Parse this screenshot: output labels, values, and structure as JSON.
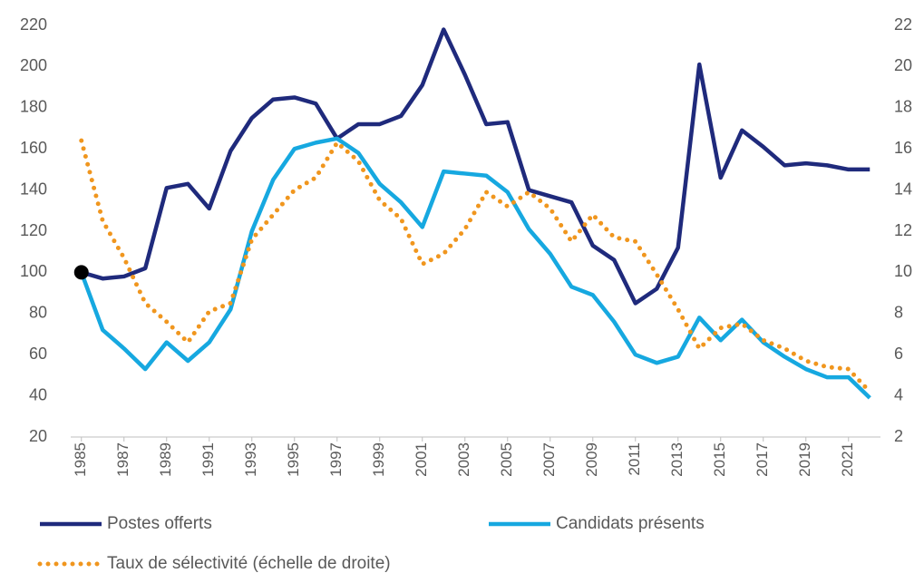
{
  "chart_data": {
    "type": "line",
    "x": [
      1985,
      1986,
      1987,
      1988,
      1989,
      1990,
      1991,
      1992,
      1993,
      1994,
      1995,
      1996,
      1997,
      1998,
      1999,
      2000,
      2001,
      2002,
      2003,
      2004,
      2005,
      2006,
      2007,
      2008,
      2009,
      2010,
      2011,
      2012,
      2013,
      2014,
      2015,
      2016,
      2017,
      2018,
      2019,
      2020,
      2021,
      2022
    ],
    "xlim": [
      1984.5,
      2022.5
    ],
    "xticks": [
      1985,
      1987,
      1989,
      1991,
      1993,
      1995,
      1997,
      1999,
      2001,
      2003,
      2005,
      2007,
      2009,
      2011,
      2013,
      2015,
      2017,
      2019,
      2021
    ],
    "ylim": [
      20,
      220
    ],
    "yticks": [
      20,
      40,
      60,
      80,
      100,
      120,
      140,
      160,
      180,
      200,
      220
    ],
    "y2lim": [
      2,
      22
    ],
    "y2ticks": [
      2,
      4,
      6,
      8,
      10,
      12,
      14,
      16,
      18,
      20,
      22
    ],
    "grid": false,
    "legend": "bottom",
    "series": [
      {
        "name": "Postes offerts",
        "color": "#1f2a7c",
        "style": "solid",
        "values": [
          100,
          97,
          98,
          102,
          141,
          143,
          131,
          159,
          175,
          184,
          185,
          182,
          165,
          172,
          172,
          176,
          191,
          218,
          196,
          172,
          173,
          140,
          137,
          134,
          113,
          106,
          85,
          92,
          112,
          201,
          146,
          169,
          161,
          152,
          153,
          152,
          150,
          150
        ]
      },
      {
        "name": "Candidats présents",
        "color": "#16a8e0",
        "style": "solid",
        "values": [
          100,
          72,
          63,
          53,
          66,
          57,
          66,
          82,
          120,
          145,
          160,
          163,
          165,
          158,
          143,
          134,
          122,
          149,
          148,
          147,
          139,
          121,
          109,
          93,
          89,
          76,
          60,
          56,
          59,
          78,
          67,
          77,
          66,
          59,
          53,
          49,
          49,
          39
        ]
      },
      {
        "name": "Taux de sélectivité (échelle de droite)",
        "color": "#f0961e",
        "style": "dotted",
        "axis": "y2",
        "values": [
          16.4,
          12.5,
          10.7,
          8.5,
          7.6,
          6.6,
          8.1,
          8.5,
          11.6,
          12.8,
          14.0,
          14.6,
          16.3,
          15.4,
          13.5,
          12.6,
          10.4,
          10.9,
          12.1,
          13.9,
          13.2,
          13.9,
          13.1,
          11.5,
          12.8,
          11.7,
          11.5,
          9.9,
          8.2,
          6.3,
          7.3,
          7.5,
          6.7,
          6.3,
          5.7,
          5.4,
          5.3,
          4.2
        ]
      }
    ]
  }
}
